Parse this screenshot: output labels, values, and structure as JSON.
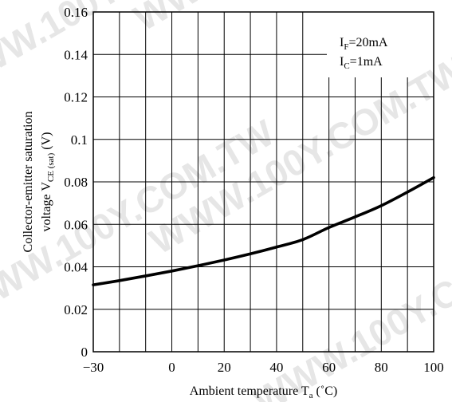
{
  "chart_data": {
    "type": "line",
    "xlabel": {
      "main": "Ambient temperature T",
      "sub": "a",
      "unit": " (˚C)"
    },
    "ylabel": {
      "line1": "Collector-emitter saturation",
      "line2_main": "voltage V",
      "line2_sub": "CE (sat)",
      "line2_unit": " (V)"
    },
    "xlim": [
      -30,
      100
    ],
    "ylim": [
      0,
      0.16
    ],
    "x_ticks": [
      -30,
      0,
      20,
      40,
      60,
      80,
      100
    ],
    "x_tick_labels": [
      "−30",
      "0",
      "20",
      "40",
      "60",
      "80",
      "100"
    ],
    "y_ticks": [
      0,
      0.02,
      0.04,
      0.06,
      0.08,
      0.1,
      0.12,
      0.14,
      0.16
    ],
    "y_tick_labels": [
      "0",
      "0.02",
      "0.04",
      "0.06",
      "0.08",
      "0.1",
      "0.12",
      "0.14",
      "0.16"
    ],
    "x_grid": [
      -30,
      -20,
      -10,
      0,
      10,
      20,
      30,
      40,
      50,
      60,
      70,
      80,
      90,
      100
    ],
    "y_grid": [
      0,
      0.02,
      0.04,
      0.06,
      0.08,
      0.1,
      0.12,
      0.14,
      0.16
    ],
    "grid": true,
    "annotations": [
      {
        "main": "I",
        "sub": "F",
        "rest": "=20mA"
      },
      {
        "main": "I",
        "sub": "C",
        "rest": "=1mA"
      }
    ],
    "series": [
      {
        "x": [
          -30,
          -20,
          -10,
          0,
          10,
          20,
          30,
          40,
          50,
          60,
          70,
          80,
          90,
          100
        ],
        "y": [
          0.0315,
          0.0335,
          0.0357,
          0.038,
          0.0405,
          0.0432,
          0.0461,
          0.0493,
          0.0528,
          0.0585,
          0.0635,
          0.0688,
          0.0752,
          0.082
        ]
      }
    ]
  },
  "watermark": "WWW.100Y.COM.TW"
}
